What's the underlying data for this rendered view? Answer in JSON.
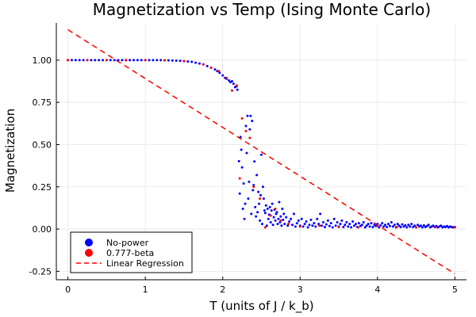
{
  "chart_data": {
    "type": "scatter",
    "title": "Magnetization vs Temp (Ising Monte Carlo)",
    "xlabel": "T (units of J / k_b)",
    "ylabel": "Magnetization",
    "xlim": [
      -0.15,
      5.15
    ],
    "ylim": [
      -0.3,
      1.22
    ],
    "xticks": [
      0,
      1,
      2,
      3,
      4,
      5
    ],
    "xtick_labels": [
      "0",
      "1",
      "2",
      "3",
      "4",
      "5"
    ],
    "yticks": [
      -0.25,
      0.0,
      0.25,
      0.5,
      0.75,
      1.0
    ],
    "ytick_labels": [
      "-0.25",
      "0.00",
      "0.25",
      "0.50",
      "0.75",
      "1.00"
    ],
    "grid": true,
    "legend_position": "bottom-left",
    "colors": {
      "no_power": "#0000ff",
      "beta": "#ff0000",
      "regression": "#ff0000"
    },
    "series": [
      {
        "name": "No-power",
        "type": "scatter",
        "color": "#0000ff",
        "points": [
          [
            0.0,
            1.0
          ],
          [
            0.05,
            1.0
          ],
          [
            0.1,
            1.0
          ],
          [
            0.15,
            1.0
          ],
          [
            0.2,
            1.0
          ],
          [
            0.25,
            1.0
          ],
          [
            0.3,
            1.0
          ],
          [
            0.35,
            1.0
          ],
          [
            0.4,
            1.0
          ],
          [
            0.45,
            1.0
          ],
          [
            0.5,
            1.0
          ],
          [
            0.55,
            1.0
          ],
          [
            0.6,
            1.0
          ],
          [
            0.65,
            1.0
          ],
          [
            0.7,
            1.0
          ],
          [
            0.75,
            1.0
          ],
          [
            0.8,
            1.0
          ],
          [
            0.85,
            1.0
          ],
          [
            0.9,
            1.0
          ],
          [
            0.95,
            1.0
          ],
          [
            1.0,
            1.0
          ],
          [
            1.05,
            1.0
          ],
          [
            1.1,
            1.0
          ],
          [
            1.15,
            1.0
          ],
          [
            1.2,
            1.0
          ],
          [
            1.25,
            0.999
          ],
          [
            1.3,
            0.999
          ],
          [
            1.35,
            0.998
          ],
          [
            1.4,
            0.997
          ],
          [
            1.45,
            0.996
          ],
          [
            1.5,
            0.994
          ],
          [
            1.55,
            0.992
          ],
          [
            1.6,
            0.99
          ],
          [
            1.65,
            0.985
          ],
          [
            1.7,
            0.98
          ],
          [
            1.75,
            0.975
          ],
          [
            1.8,
            0.965
          ],
          [
            1.85,
            0.955
          ],
          [
            1.9,
            0.945
          ],
          [
            1.93,
            0.935
          ],
          [
            1.96,
            0.925
          ],
          [
            2.0,
            0.91
          ],
          [
            2.03,
            0.895
          ],
          [
            2.05,
            0.89
          ],
          [
            2.08,
            0.88
          ],
          [
            2.1,
            0.87
          ],
          [
            2.12,
            0.875
          ],
          [
            2.14,
            0.86
          ],
          [
            2.16,
            0.84
          ],
          [
            2.18,
            0.845
          ],
          [
            2.19,
            0.825
          ],
          [
            2.21,
            0.402
          ],
          [
            2.22,
            0.21
          ],
          [
            2.23,
            0.545
          ],
          [
            2.24,
            0.47
          ],
          [
            2.25,
            0.365
          ],
          [
            2.26,
            0.12
          ],
          [
            2.27,
            0.27
          ],
          [
            2.28,
            0.06
          ],
          [
            2.29,
            0.15
          ],
          [
            2.3,
            0.61
          ],
          [
            2.31,
            0.45
          ],
          [
            2.32,
            0.67
          ],
          [
            2.33,
            0.18
          ],
          [
            2.34,
            0.28
          ],
          [
            2.35,
            0.59
          ],
          [
            2.36,
            0.67
          ],
          [
            2.37,
            0.09
          ],
          [
            2.38,
            0.64
          ],
          [
            2.39,
            0.23
          ],
          [
            2.4,
            0.26
          ],
          [
            2.41,
            0.4
          ],
          [
            2.42,
            0.13
          ],
          [
            2.43,
            0.075
          ],
          [
            2.44,
            0.32
          ],
          [
            2.45,
            0.1
          ],
          [
            2.46,
            0.22
          ],
          [
            2.47,
            0.15
          ],
          [
            2.48,
            0.05
          ],
          [
            2.49,
            0.2
          ],
          [
            2.5,
            0.44
          ],
          [
            2.51,
            0.03
          ],
          [
            2.52,
            0.25
          ],
          [
            2.53,
            0.18
          ],
          [
            2.54,
            0.11
          ],
          [
            2.55,
            0.095
          ],
          [
            2.56,
            0.14
          ],
          [
            2.57,
            0.02
          ],
          [
            2.58,
            0.12
          ],
          [
            2.59,
            0.06
          ],
          [
            2.6,
            0.085
          ],
          [
            2.61,
            0.13
          ],
          [
            2.62,
            0.04
          ],
          [
            2.63,
            0.11
          ],
          [
            2.64,
            0.15
          ],
          [
            2.65,
            0.025
          ],
          [
            2.66,
            0.07
          ],
          [
            2.67,
            0.115
          ],
          [
            2.68,
            0.05
          ],
          [
            2.69,
            0.09
          ],
          [
            2.7,
            0.1
          ],
          [
            2.71,
            0.03
          ],
          [
            2.72,
            0.06
          ],
          [
            2.73,
            0.16
          ],
          [
            2.74,
            0.04
          ],
          [
            2.75,
            0.075
          ],
          [
            2.76,
            0.02
          ],
          [
            2.77,
            0.12
          ],
          [
            2.78,
            0.055
          ],
          [
            2.79,
            0.09
          ],
          [
            2.8,
            0.03
          ],
          [
            2.82,
            0.07
          ],
          [
            2.84,
            0.02
          ],
          [
            2.86,
            0.045
          ],
          [
            2.88,
            0.06
          ],
          [
            2.9,
            0.025
          ],
          [
            2.92,
            0.09
          ],
          [
            2.94,
            0.015
          ],
          [
            2.96,
            0.035
          ],
          [
            2.98,
            0.05
          ],
          [
            3.0,
            0.02
          ],
          [
            3.02,
            0.06
          ],
          [
            3.04,
            0.015
          ],
          [
            3.06,
            0.03
          ],
          [
            3.08,
            0.045
          ],
          [
            3.1,
            0.01
          ],
          [
            3.12,
            0.025
          ],
          [
            3.14,
            0.055
          ],
          [
            3.16,
            0.02
          ],
          [
            3.18,
            0.035
          ],
          [
            3.2,
            0.015
          ],
          [
            3.22,
            0.06
          ],
          [
            3.24,
            0.03
          ],
          [
            3.26,
            0.09
          ],
          [
            3.28,
            0.02
          ],
          [
            3.3,
            0.04
          ],
          [
            3.32,
            0.012
          ],
          [
            3.34,
            0.028
          ],
          [
            3.36,
            0.05
          ],
          [
            3.38,
            0.018
          ],
          [
            3.4,
            0.035
          ],
          [
            3.42,
            0.01
          ],
          [
            3.44,
            0.06
          ],
          [
            3.46,
            0.02
          ],
          [
            3.48,
            0.04
          ],
          [
            3.5,
            0.015
          ],
          [
            3.52,
            0.03
          ],
          [
            3.54,
            0.05
          ],
          [
            3.56,
            0.012
          ],
          [
            3.58,
            0.025
          ],
          [
            3.6,
            0.04
          ],
          [
            3.62,
            0.015
          ],
          [
            3.64,
            0.03
          ],
          [
            3.66,
            0.01
          ],
          [
            3.68,
            0.045
          ],
          [
            3.7,
            0.02
          ],
          [
            3.72,
            0.03
          ],
          [
            3.74,
            0.012
          ],
          [
            3.76,
            0.035
          ],
          [
            3.78,
            0.018
          ],
          [
            3.8,
            0.025
          ],
          [
            3.82,
            0.04
          ],
          [
            3.84,
            0.01
          ],
          [
            3.86,
            0.02
          ],
          [
            3.88,
            0.03
          ],
          [
            3.9,
            0.015
          ],
          [
            3.92,
            0.035
          ],
          [
            3.94,
            0.012
          ],
          [
            3.96,
            0.025
          ],
          [
            3.98,
            0.018
          ],
          [
            4.0,
            0.03
          ],
          [
            4.02,
            0.01
          ],
          [
            4.04,
            0.022
          ],
          [
            4.06,
            0.035
          ],
          [
            4.08,
            0.015
          ],
          [
            4.1,
            0.025
          ],
          [
            4.12,
            0.012
          ],
          [
            4.14,
            0.03
          ],
          [
            4.16,
            0.018
          ],
          [
            4.18,
            0.04
          ],
          [
            4.2,
            0.015
          ],
          [
            4.22,
            0.025
          ],
          [
            4.24,
            0.01
          ],
          [
            4.26,
            0.03
          ],
          [
            4.28,
            0.02
          ],
          [
            4.3,
            0.012
          ],
          [
            4.32,
            0.028
          ],
          [
            4.34,
            0.015
          ],
          [
            4.36,
            0.022
          ],
          [
            4.38,
            0.01
          ],
          [
            4.4,
            0.025
          ],
          [
            4.42,
            0.015
          ],
          [
            4.44,
            0.03
          ],
          [
            4.46,
            0.012
          ],
          [
            4.48,
            0.02
          ],
          [
            4.5,
            0.01
          ],
          [
            4.52,
            0.025
          ],
          [
            4.54,
            0.015
          ],
          [
            4.56,
            0.02
          ],
          [
            4.58,
            0.01
          ],
          [
            4.6,
            0.022
          ],
          [
            4.62,
            0.012
          ],
          [
            4.64,
            0.018
          ],
          [
            4.66,
            0.025
          ],
          [
            4.68,
            0.01
          ],
          [
            4.7,
            0.015
          ],
          [
            4.72,
            0.02
          ],
          [
            4.74,
            0.012
          ],
          [
            4.76,
            0.018
          ],
          [
            4.78,
            0.01
          ],
          [
            4.8,
            0.015
          ],
          [
            4.82,
            0.02
          ],
          [
            4.84,
            0.01
          ],
          [
            4.86,
            0.015
          ],
          [
            4.88,
            0.012
          ],
          [
            4.9,
            0.018
          ],
          [
            4.92,
            0.01
          ],
          [
            4.94,
            0.015
          ],
          [
            4.96,
            0.012
          ],
          [
            4.98,
            0.01
          ],
          [
            5.0,
            0.012
          ]
        ]
      },
      {
        "name": "0.777-beta",
        "type": "scatter",
        "color": "#ff0000",
        "points": [
          [
            0.0,
            1.0
          ],
          [
            0.25,
            1.0
          ],
          [
            0.5,
            1.0
          ],
          [
            0.75,
            1.0
          ],
          [
            1.0,
            1.0
          ],
          [
            1.25,
            0.999
          ],
          [
            1.5,
            0.994
          ],
          [
            1.75,
            0.975
          ],
          [
            1.85,
            0.955
          ],
          [
            1.95,
            0.935
          ],
          [
            2.05,
            0.895
          ],
          [
            2.12,
            0.82
          ],
          [
            2.18,
            0.85
          ],
          [
            2.22,
            0.3
          ],
          [
            2.25,
            0.655
          ],
          [
            2.3,
            0.58
          ],
          [
            2.35,
            0.54
          ],
          [
            2.4,
            0.25
          ],
          [
            2.48,
            0.18
          ],
          [
            2.55,
            0.01
          ],
          [
            2.62,
            0.08
          ],
          [
            2.68,
            0.12
          ],
          [
            2.75,
            0.05
          ],
          [
            2.85,
            0.03
          ],
          [
            3.0,
            0.015
          ],
          [
            3.25,
            0.02
          ],
          [
            3.5,
            0.012
          ],
          [
            3.75,
            0.01
          ],
          [
            4.0,
            0.02
          ],
          [
            4.25,
            0.012
          ],
          [
            4.5,
            0.01
          ],
          [
            4.75,
            0.012
          ],
          [
            5.0,
            0.01
          ]
        ]
      },
      {
        "name": "Linear Regression",
        "type": "line",
        "style": "dashed",
        "color": "#ff0000",
        "x": [
          0,
          5
        ],
        "y": [
          1.18,
          -0.265
        ]
      }
    ]
  }
}
